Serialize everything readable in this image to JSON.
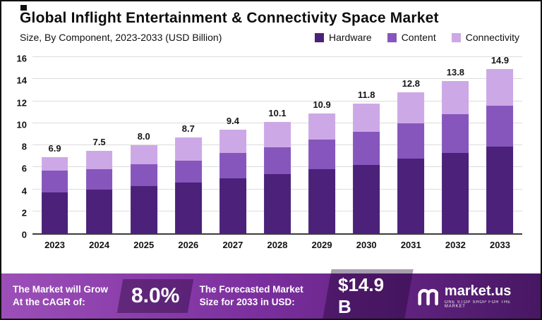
{
  "title": "Global Inflight Entertainment & Connectivity Space Market",
  "subtitle": "Size, By Component, 2023-2033 (USD Billion)",
  "legend": [
    {
      "label": "Hardware",
      "color": "#4b2179"
    },
    {
      "label": "Content",
      "color": "#8656bd"
    },
    {
      "label": "Connectivity",
      "color": "#cda8e6"
    }
  ],
  "chart_data": {
    "type": "bar",
    "stacked": true,
    "title": "Global Inflight Entertainment & Connectivity Space Market",
    "subtitle": "Size, By Component, 2023-2033 (USD Billion)",
    "categories": [
      "2023",
      "2024",
      "2025",
      "2026",
      "2027",
      "2028",
      "2029",
      "2030",
      "2031",
      "2032",
      "2033"
    ],
    "series": [
      {
        "name": "Hardware",
        "color": "#4b2179",
        "values": [
          3.7,
          4.0,
          4.3,
          4.6,
          5.0,
          5.4,
          5.8,
          6.2,
          6.8,
          7.3,
          7.9
        ]
      },
      {
        "name": "Content",
        "color": "#8656bd",
        "values": [
          2.0,
          1.8,
          2.0,
          2.0,
          2.3,
          2.4,
          2.7,
          3.0,
          3.2,
          3.5,
          3.7
        ]
      },
      {
        "name": "Connectivity",
        "color": "#cda8e6",
        "values": [
          1.2,
          1.7,
          1.7,
          2.1,
          2.1,
          2.3,
          2.4,
          2.6,
          2.8,
          3.0,
          3.3
        ]
      }
    ],
    "totals": [
      6.9,
      7.5,
      8.0,
      8.7,
      9.4,
      10.1,
      10.9,
      11.8,
      12.8,
      13.8,
      14.9
    ],
    "ylabel": "",
    "xlabel": "",
    "ylim": [
      0,
      16
    ],
    "ytick_step": 2,
    "grid": true,
    "legend_position": "top-right"
  },
  "footer": {
    "cagr_label": "The Market will Grow At the CAGR of:",
    "cagr_value": "8.0%",
    "forecast_label": "The Forecasted Market Size for 2033 in USD:",
    "forecast_value": "$14.9 B",
    "brand": "market.us",
    "brand_tagline": "ONE STOP SHOP FOR THE MARKET"
  }
}
